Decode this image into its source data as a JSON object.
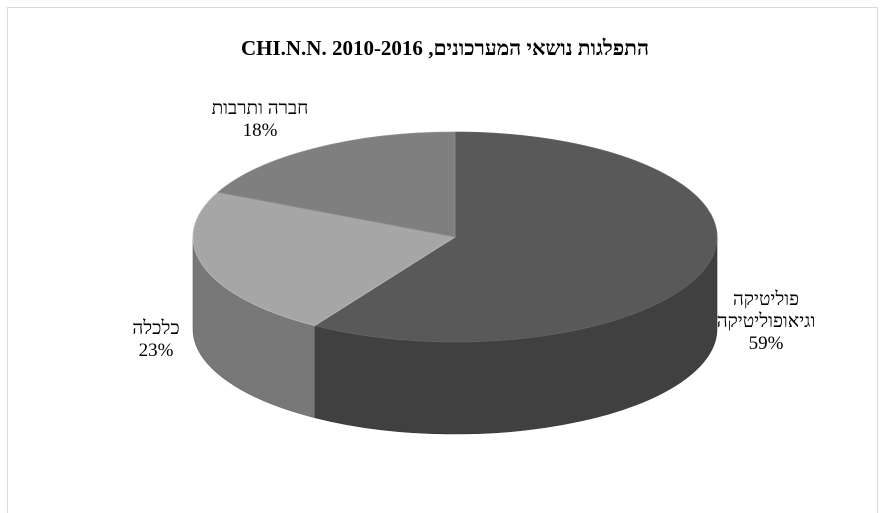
{
  "chart_data": {
    "type": "pie",
    "title": "התפלגות נושאי המערכונים, CHI.N.N. 2010-2016",
    "slices": [
      {
        "label": "פוליטיקה\nוגיאופוליטיקה",
        "value": 59,
        "value_label": "59%",
        "color": "#595959"
      },
      {
        "label": "כלכלה",
        "value": 23,
        "value_label": "23%",
        "color": "#a6a6a6"
      },
      {
        "label": "חברה ותרבות",
        "value": 18,
        "value_label": "18%",
        "color": "#7f7f7f"
      }
    ],
    "legend": "none",
    "style": "3d"
  }
}
